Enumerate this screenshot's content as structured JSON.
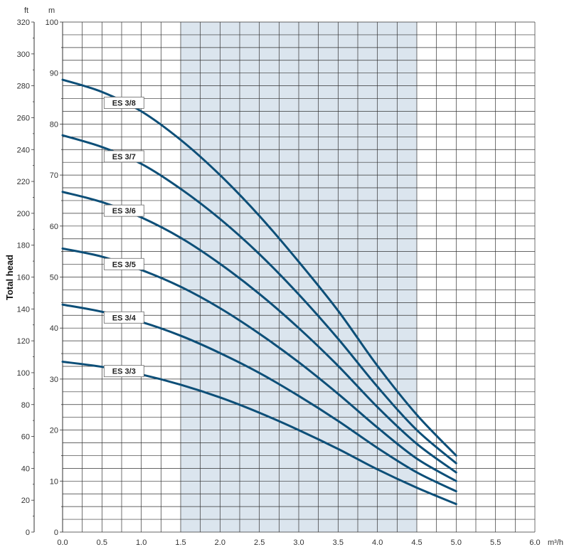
{
  "chart_data": {
    "type": "line",
    "title": "",
    "xlabel": "",
    "x_unit": "m³/h",
    "y_unit_m": "m",
    "y_unit_ft": "ft",
    "ylabel": "Total head",
    "xlim": [
      0,
      6.0
    ],
    "ylim_m": [
      0,
      100
    ],
    "ylim_ft": [
      0,
      320
    ],
    "x_ticks": [
      "0.0",
      "0.5",
      "1.0",
      "1.5",
      "2.0",
      "2.5",
      "3.0",
      "3.5",
      "4.0",
      "4.5",
      "5.0",
      "5.5",
      "6.0"
    ],
    "y_ticks_m": [
      "0",
      "10",
      "20",
      "30",
      "40",
      "50",
      "60",
      "70",
      "80",
      "90",
      "100"
    ],
    "y_ticks_ft": [
      "0",
      "20",
      "40",
      "60",
      "80",
      "100",
      "120",
      "140",
      "160",
      "180",
      "200",
      "220",
      "240",
      "260",
      "280",
      "300",
      "320"
    ],
    "highlight_range": [
      1.5,
      4.5
    ],
    "grid": true,
    "colors": {
      "curve": "#0d4f78",
      "highlight": "#dbe5ee",
      "grid": "#333333"
    },
    "series": [
      {
        "name": "ES 3/8",
        "x": [
          0,
          0.5,
          1.0,
          1.5,
          2.0,
          2.5,
          3.0,
          3.5,
          4.0,
          4.5,
          5.0
        ],
        "values": [
          88.7,
          86.3,
          82.5,
          76.9,
          70.0,
          62.0,
          53.0,
          43.4,
          32.6,
          23.0,
          15.0
        ]
      },
      {
        "name": "ES 3/7",
        "x": [
          0,
          0.5,
          1.0,
          1.5,
          2.0,
          2.5,
          3.0,
          3.5,
          4.0,
          4.5,
          5.0
        ],
        "values": [
          77.8,
          75.5,
          72.2,
          67.3,
          61.4,
          54.5,
          46.6,
          37.9,
          28.5,
          20.0,
          13.5
        ]
      },
      {
        "name": "ES 3/6",
        "x": [
          0,
          0.5,
          1.0,
          1.5,
          2.0,
          2.5,
          3.0,
          3.5,
          4.0,
          4.5,
          5.0
        ],
        "values": [
          66.7,
          64.7,
          61.7,
          57.7,
          52.6,
          46.7,
          40.0,
          32.6,
          24.5,
          17.3,
          11.7
        ]
      },
      {
        "name": "ES 3/5",
        "x": [
          0,
          0.5,
          1.0,
          1.5,
          2.0,
          2.5,
          3.0,
          3.5,
          4.0,
          4.5,
          5.0
        ],
        "values": [
          55.6,
          54.0,
          51.4,
          48.1,
          43.9,
          38.9,
          33.3,
          27.1,
          20.5,
          14.4,
          10.0
        ]
      },
      {
        "name": "ES 3/4",
        "x": [
          0,
          0.5,
          1.0,
          1.5,
          2.0,
          2.5,
          3.0,
          3.5,
          4.0,
          4.5,
          5.0
        ],
        "values": [
          44.6,
          43.2,
          41.2,
          38.5,
          35.1,
          31.2,
          26.7,
          21.8,
          16.5,
          11.7,
          8.0
        ]
      },
      {
        "name": "ES 3/3",
        "x": [
          0,
          0.5,
          1.0,
          1.5,
          2.0,
          2.5,
          3.0,
          3.5,
          4.0,
          4.5,
          5.0
        ],
        "values": [
          33.4,
          32.4,
          30.9,
          28.9,
          26.4,
          23.4,
          20.0,
          16.3,
          12.3,
          8.7,
          5.5
        ]
      }
    ]
  }
}
